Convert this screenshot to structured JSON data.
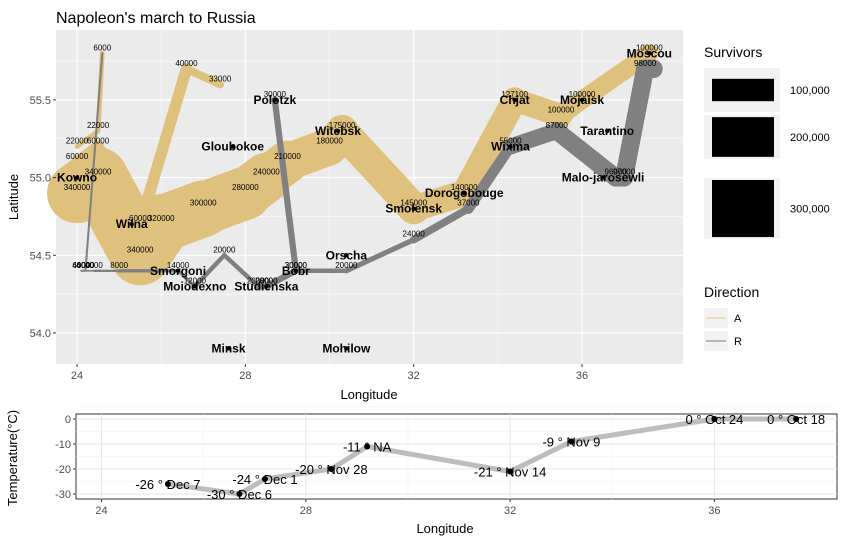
{
  "title": "Napoleon's march to Russia",
  "colors": {
    "advance": "#dfc17e",
    "retreat": "#808080",
    "panel_bg": "#ebebeb",
    "grid_major": "#ffffff",
    "temp_line": "#bdbdbd"
  },
  "chart_data": [
    {
      "type": "map",
      "title": "Napoleon's march to Russia",
      "xlabel": "Longitude",
      "ylabel": "Latitude",
      "xlim": [
        23.5,
        38.4
      ],
      "ylim": [
        53.8,
        55.95
      ],
      "x_ticks": [
        24,
        28,
        32,
        36
      ],
      "x_tick_labels": [
        "24",
        "28",
        "32",
        "36"
      ],
      "y_ticks": [
        54.0,
        54.5,
        55.0,
        55.5
      ],
      "y_tick_labels": [
        "54.0",
        "54.5",
        "55.0",
        "55.5"
      ],
      "grid": true,
      "series": [
        {
          "name": "A",
          "points": [
            {
              "lon": 24.0,
              "lat": 54.9,
              "survivors": 340000
            },
            {
              "lon": 24.5,
              "lat": 55.0,
              "survivors": 340000
            },
            {
              "lon": 25.5,
              "lat": 54.5,
              "survivors": 340000
            },
            {
              "lon": 26.0,
              "lat": 54.7,
              "survivors": 320000
            },
            {
              "lon": 27.0,
              "lat": 54.8,
              "survivors": 300000
            },
            {
              "lon": 28.0,
              "lat": 54.9,
              "survivors": 280000
            },
            {
              "lon": 28.5,
              "lat": 55.0,
              "survivors": 240000
            },
            {
              "lon": 29.0,
              "lat": 55.1,
              "survivors": 210000
            },
            {
              "lon": 30.0,
              "lat": 55.2,
              "survivors": 180000
            },
            {
              "lon": 30.3,
              "lat": 55.3,
              "survivors": 175000
            },
            {
              "lon": 32.0,
              "lat": 54.8,
              "survivors": 145000
            },
            {
              "lon": 33.2,
              "lat": 54.9,
              "survivors": 140000
            },
            {
              "lon": 34.4,
              "lat": 55.5,
              "survivors": 127100
            },
            {
              "lon": 35.5,
              "lat": 55.4,
              "survivors": 100000
            },
            {
              "lon": 36.0,
              "lat": 55.5,
              "survivors": 100000
            },
            {
              "lon": 37.6,
              "lat": 55.8,
              "survivors": 100000
            }
          ]
        },
        {
          "name": "R",
          "points": [
            {
              "lon": 37.7,
              "lat": 55.7,
              "survivors": 100000
            },
            {
              "lon": 37.5,
              "lat": 55.7,
              "survivors": 98000
            },
            {
              "lon": 37.0,
              "lat": 55.0,
              "survivors": 97000
            },
            {
              "lon": 36.8,
              "lat": 55.0,
              "survivors": 96000
            },
            {
              "lon": 35.4,
              "lat": 55.3,
              "survivors": 87000
            },
            {
              "lon": 34.3,
              "lat": 55.2,
              "survivors": 55000
            },
            {
              "lon": 33.3,
              "lat": 54.8,
              "survivors": 37000
            },
            {
              "lon": 32.0,
              "lat": 54.6,
              "survivors": 24000
            },
            {
              "lon": 30.4,
              "lat": 54.4,
              "survivors": 20000
            },
            {
              "lon": 29.2,
              "lat": 54.4,
              "survivors": 20000
            },
            {
              "lon": 28.5,
              "lat": 54.3,
              "survivors": 20000
            },
            {
              "lon": 28.3,
              "lat": 54.3,
              "survivors": 20000
            },
            {
              "lon": 27.5,
              "lat": 54.5,
              "survivors": 20000
            },
            {
              "lon": 26.8,
              "lat": 54.3,
              "survivors": 12000
            },
            {
              "lon": 26.4,
              "lat": 54.4,
              "survivors": 14000
            },
            {
              "lon": 25.0,
              "lat": 54.4,
              "survivors": 8000
            },
            {
              "lon": 24.4,
              "lat": 54.4,
              "survivors": 4000
            },
            {
              "lon": 24.2,
              "lat": 54.4,
              "survivors": 4000
            },
            {
              "lon": 24.1,
              "lat": 54.4,
              "survivors": 4000
            }
          ]
        },
        {
          "name": "A",
          "points": [
            {
              "lon": 24.0,
              "lat": 55.1,
              "survivors": 60000
            },
            {
              "lon": 24.5,
              "lat": 55.2,
              "survivors": 60000
            },
            {
              "lon": 25.5,
              "lat": 54.7,
              "survivors": 60000
            },
            {
              "lon": 26.6,
              "lat": 55.7,
              "survivors": 40000
            },
            {
              "lon": 27.4,
              "lat": 55.6,
              "survivors": 33000
            }
          ]
        },
        {
          "name": "R",
          "points": [
            {
              "lon": 28.7,
              "lat": 55.5,
              "survivors": 33000
            },
            {
              "lon": 28.7,
              "lat": 55.5,
              "survivors": 30000
            },
            {
              "lon": 29.2,
              "lat": 54.4,
              "survivors": 30000
            },
            {
              "lon": 28.5,
              "lat": 54.3,
              "survivors": 28000
            },
            {
              "lon": 28.3,
              "lat": 54.3,
              "survivors": 28000
            }
          ]
        },
        {
          "name": "A",
          "points": [
            {
              "lon": 24.0,
              "lat": 55.2,
              "survivors": 22000
            },
            {
              "lon": 24.5,
              "lat": 55.3,
              "survivors": 22000
            },
            {
              "lon": 24.6,
              "lat": 55.8,
              "survivors": 6000
            }
          ]
        },
        {
          "name": "R",
          "points": [
            {
              "lon": 24.6,
              "lat": 55.8,
              "survivors": 6000
            },
            {
              "lon": 24.2,
              "lat": 54.4,
              "survivors": 6000
            },
            {
              "lon": 24.1,
              "lat": 54.4,
              "survivors": 6000
            }
          ]
        }
      ],
      "point_labels": [
        {
          "lon": 24.0,
          "lat": 54.9,
          "text": "340000"
        },
        {
          "lon": 24.5,
          "lat": 55.0,
          "text": "340000"
        },
        {
          "lon": 25.5,
          "lat": 54.5,
          "text": "340000"
        },
        {
          "lon": 26.0,
          "lat": 54.7,
          "text": "320000"
        },
        {
          "lon": 27.0,
          "lat": 54.8,
          "text": "300000"
        },
        {
          "lon": 28.0,
          "lat": 54.9,
          "text": "280000"
        },
        {
          "lon": 28.5,
          "lat": 55.0,
          "text": "240000"
        },
        {
          "lon": 29.0,
          "lat": 55.1,
          "text": "210000"
        },
        {
          "lon": 30.0,
          "lat": 55.2,
          "text": "180000"
        },
        {
          "lon": 30.3,
          "lat": 55.3,
          "text": "175000"
        },
        {
          "lon": 32.0,
          "lat": 54.8,
          "text": "145000"
        },
        {
          "lon": 33.2,
          "lat": 54.9,
          "text": "140000"
        },
        {
          "lon": 34.4,
          "lat": 55.5,
          "text": "127100"
        },
        {
          "lon": 35.5,
          "lat": 55.4,
          "text": "100000"
        },
        {
          "lon": 36.0,
          "lat": 55.5,
          "text": "100000"
        },
        {
          "lon": 37.6,
          "lat": 55.8,
          "text": "100000"
        },
        {
          "lon": 37.5,
          "lat": 55.7,
          "text": "98000"
        },
        {
          "lon": 37.0,
          "lat": 55.0,
          "text": "97000"
        },
        {
          "lon": 36.8,
          "lat": 55.0,
          "text": "96000"
        },
        {
          "lon": 35.4,
          "lat": 55.3,
          "text": "87000"
        },
        {
          "lon": 34.3,
          "lat": 55.2,
          "text": "55000"
        },
        {
          "lon": 33.3,
          "lat": 54.8,
          "text": "37000"
        },
        {
          "lon": 32.0,
          "lat": 54.6,
          "text": "24000"
        },
        {
          "lon": 30.4,
          "lat": 54.4,
          "text": "20000"
        },
        {
          "lon": 29.2,
          "lat": 54.4,
          "text": "20000"
        },
        {
          "lon": 28.5,
          "lat": 54.3,
          "text": "20000"
        },
        {
          "lon": 28.3,
          "lat": 54.3,
          "text": "20000"
        },
        {
          "lon": 27.5,
          "lat": 54.5,
          "text": "20000"
        },
        {
          "lon": 26.8,
          "lat": 54.3,
          "text": "12000"
        },
        {
          "lon": 26.4,
          "lat": 54.4,
          "text": "14000"
        },
        {
          "lon": 25.0,
          "lat": 54.4,
          "text": "8000"
        },
        {
          "lon": 24.4,
          "lat": 54.4,
          "text": "4000"
        },
        {
          "lon": 24.2,
          "lat": 54.4,
          "text": "4000"
        },
        {
          "lon": 24.1,
          "lat": 54.4,
          "text": "4000"
        },
        {
          "lon": 24.0,
          "lat": 55.1,
          "text": "60000"
        },
        {
          "lon": 24.5,
          "lat": 55.2,
          "text": "60000"
        },
        {
          "lon": 25.5,
          "lat": 54.7,
          "text": "60000"
        },
        {
          "lon": 26.6,
          "lat": 55.7,
          "text": "40000"
        },
        {
          "lon": 27.4,
          "lat": 55.6,
          "text": "33000"
        },
        {
          "lon": 28.7,
          "lat": 55.5,
          "text": "30000"
        },
        {
          "lon": 29.2,
          "lat": 54.4,
          "text": "30000"
        },
        {
          "lon": 28.5,
          "lat": 54.3,
          "text": "28000"
        },
        {
          "lon": 24.0,
          "lat": 55.2,
          "text": "22000"
        },
        {
          "lon": 24.5,
          "lat": 55.3,
          "text": "22000"
        },
        {
          "lon": 24.6,
          "lat": 55.8,
          "text": "6000"
        },
        {
          "lon": 24.2,
          "lat": 54.4,
          "text": "6000"
        },
        {
          "lon": 24.1,
          "lat": 54.4,
          "text": "6000"
        }
      ],
      "cities": [
        {
          "name": "Kowno",
          "lon": 24.0,
          "lat": 55.0
        },
        {
          "name": "Wilna",
          "lon": 25.3,
          "lat": 54.7
        },
        {
          "name": "Smorgoni",
          "lon": 26.4,
          "lat": 54.4
        },
        {
          "name": "Moiodexno",
          "lon": 26.8,
          "lat": 54.3
        },
        {
          "name": "Gloubokoe",
          "lon": 27.7,
          "lat": 55.2
        },
        {
          "name": "Minsk",
          "lon": 27.6,
          "lat": 53.9
        },
        {
          "name": "Studienska",
          "lon": 28.5,
          "lat": 54.3
        },
        {
          "name": "Polotzk",
          "lon": 28.7,
          "lat": 55.5
        },
        {
          "name": "Bobr",
          "lon": 29.2,
          "lat": 54.4
        },
        {
          "name": "Witebsk",
          "lon": 30.2,
          "lat": 55.3
        },
        {
          "name": "Orscha",
          "lon": 30.4,
          "lat": 54.5
        },
        {
          "name": "Mohilow",
          "lon": 30.4,
          "lat": 53.9
        },
        {
          "name": "Smolensk",
          "lon": 32.0,
          "lat": 54.8
        },
        {
          "name": "Dorogobouge",
          "lon": 33.2,
          "lat": 54.9
        },
        {
          "name": "Wixma",
          "lon": 34.3,
          "lat": 55.2
        },
        {
          "name": "Chjat",
          "lon": 34.4,
          "lat": 55.5
        },
        {
          "name": "Mojaisk",
          "lon": 36.0,
          "lat": 55.5
        },
        {
          "name": "Moscou",
          "lon": 37.6,
          "lat": 55.8
        },
        {
          "name": "Tarantino",
          "lon": 36.6,
          "lat": 55.3
        },
        {
          "name": "Malo-jarosewli",
          "lon": 36.5,
          "lat": 55.0
        }
      ],
      "legend": {
        "placement": "right",
        "survivors_title": "Survivors",
        "survivors_entries": [
          {
            "label": "100,000",
            "value": 100000
          },
          {
            "label": "200,000",
            "value": 200000
          },
          {
            "label": "300,000",
            "value": 300000
          }
        ],
        "direction_title": "Direction",
        "direction_entries": [
          "A",
          "R"
        ]
      }
    },
    {
      "type": "line",
      "xlabel": "Longitude",
      "ylabel": "Temperature(°C)",
      "xlim": [
        23.5,
        38.4
      ],
      "ylim": [
        -32,
        2
      ],
      "x_ticks": [
        24,
        28,
        32,
        36
      ],
      "x_tick_labels": [
        "24",
        "28",
        "32",
        "36"
      ],
      "y_ticks": [
        0,
        -10,
        -20,
        -30
      ],
      "y_tick_labels": [
        "0",
        "-10",
        "-20",
        "-30"
      ],
      "grid": true,
      "points": [
        {
          "lon": 37.6,
          "temp": 0,
          "label": "0 ° Oct 18"
        },
        {
          "lon": 36.0,
          "temp": 0,
          "label": "0 ° Oct 24"
        },
        {
          "lon": 33.2,
          "temp": -9,
          "label": "-9 ° Nov 9"
        },
        {
          "lon": 32.0,
          "temp": -21,
          "label": "-21 ° Nov 14"
        },
        {
          "lon": 29.2,
          "temp": -11,
          "label": "-11 ° NA"
        },
        {
          "lon": 28.5,
          "temp": -20,
          "label": "-20 ° Nov 28"
        },
        {
          "lon": 27.2,
          "temp": -24,
          "label": "-24 ° Dec 1"
        },
        {
          "lon": 26.7,
          "temp": -30,
          "label": "-30 ° Dec 6"
        },
        {
          "lon": 25.3,
          "temp": -26,
          "label": "-26 ° Dec 7"
        }
      ]
    }
  ]
}
